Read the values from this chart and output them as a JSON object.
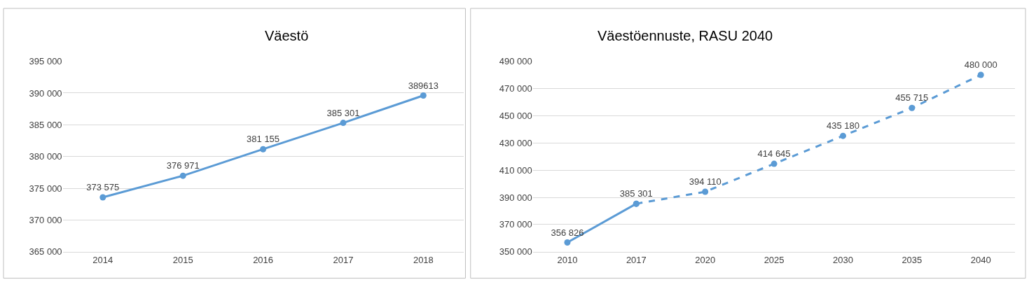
{
  "chart_data": [
    {
      "type": "line",
      "title": "Väestö",
      "categories": [
        "2014",
        "2015",
        "2016",
        "2017",
        "2018"
      ],
      "series": [
        {
          "color": "#5b9bd5",
          "values": [
            373575,
            376971,
            381155,
            385301,
            389613
          ],
          "value_labels": [
            "373 575",
            "376 971",
            "381 155",
            "385 301",
            "389613"
          ],
          "line_style": "solid"
        }
      ],
      "ylim": [
        365000,
        395000
      ],
      "yticks": [
        {
          "value": 365000,
          "label": "365 000"
        },
        {
          "value": 370000,
          "label": "370 000"
        },
        {
          "value": 375000,
          "label": "375 000"
        },
        {
          "value": 380000,
          "label": "380 000"
        },
        {
          "value": 385000,
          "label": "385 000"
        },
        {
          "value": 390000,
          "label": "390 000"
        },
        {
          "value": 395000,
          "label": "395 000"
        }
      ],
      "grid": "y",
      "marker": "circle"
    },
    {
      "type": "line",
      "title": "Väestöennuste, RASU 2040",
      "categories": [
        "2010",
        "2017",
        "2020",
        "2025",
        "2030",
        "2035",
        "2040"
      ],
      "series": [
        {
          "color": "#5b9bd5",
          "values": [
            356826,
            385301,
            null,
            null,
            null,
            null,
            null
          ],
          "value_labels": [
            "356 826",
            null,
            null,
            null,
            null,
            null,
            null
          ],
          "line_style": "solid"
        },
        {
          "color": "#5b9bd5",
          "values": [
            null,
            385301,
            394110,
            414645,
            435180,
            455715,
            480000
          ],
          "value_labels": [
            null,
            "385 301",
            "394 110",
            "414 645",
            "435 180",
            "455 715",
            "480 000"
          ],
          "line_style": "dashed"
        }
      ],
      "ylim": [
        350000,
        490000
      ],
      "yticks": [
        {
          "value": 350000,
          "label": "350 000"
        },
        {
          "value": 370000,
          "label": "370 000"
        },
        {
          "value": 390000,
          "label": "390 000"
        },
        {
          "value": 410000,
          "label": "410 000"
        },
        {
          "value": 430000,
          "label": "430 000"
        },
        {
          "value": 450000,
          "label": "450 000"
        },
        {
          "value": 470000,
          "label": "470 000"
        },
        {
          "value": 490000,
          "label": "490 000"
        }
      ],
      "grid": "y",
      "marker": "circle"
    }
  ]
}
